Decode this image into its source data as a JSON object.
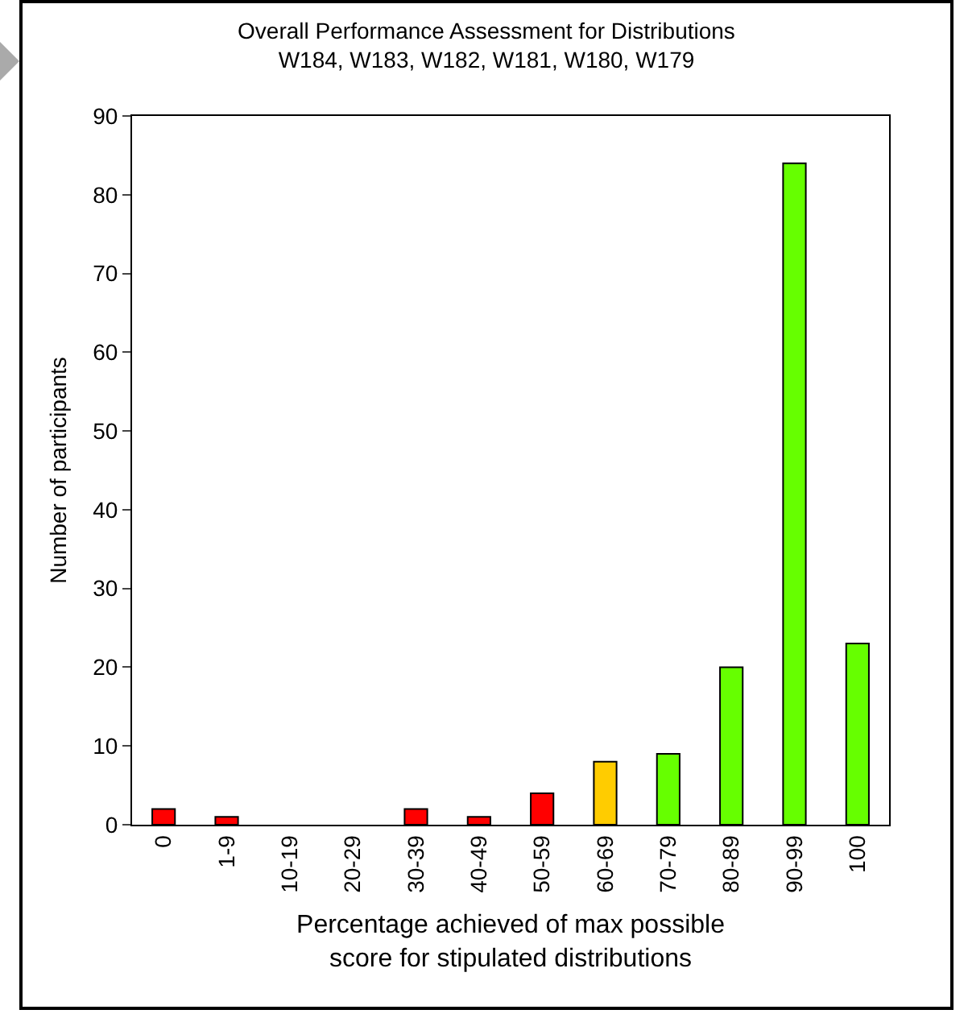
{
  "chart_data": {
    "type": "bar",
    "title": "Overall Performance Assessment for Distributions",
    "subtitle": "W184, W183, W182, W181, W180, W179",
    "xlabel": "Percentage achieved of max possible\nscore for stipulated distributions",
    "ylabel": "Number of participants",
    "categories": [
      "0",
      "1-9",
      "10-19",
      "20-29",
      "30-39",
      "40-49",
      "50-59",
      "60-69",
      "70-79",
      "80-89",
      "90-99",
      "100"
    ],
    "values": [
      2,
      1,
      0,
      0,
      2,
      1,
      4,
      8,
      9,
      20,
      84,
      23
    ],
    "colors": [
      "#ff0000",
      "#ff0000",
      "#ff0000",
      "#ff0000",
      "#ff0000",
      "#ff0000",
      "#ff0000",
      "#ffcc00",
      "#66ff00",
      "#66ff00",
      "#66ff00",
      "#66ff00"
    ],
    "ylim": [
      0,
      90
    ],
    "yticks": [
      0,
      10,
      20,
      30,
      40,
      50,
      60,
      70,
      80,
      90
    ],
    "grid": false
  }
}
